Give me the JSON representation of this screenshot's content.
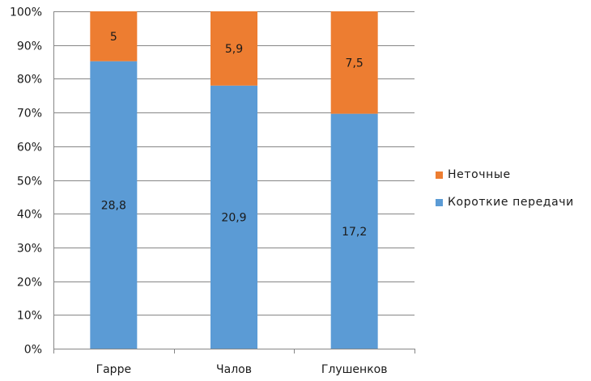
{
  "chart_data": {
    "type": "bar",
    "stacked": "percent",
    "categories": [
      "Гарре",
      "Чалов",
      "Глушенков"
    ],
    "series": [
      {
        "name": "Короткие передачи",
        "values": [
          28.8,
          20.9,
          17.2
        ],
        "labels": [
          "28,8",
          "20,9",
          "17,2"
        ],
        "color": "#5b9bd5"
      },
      {
        "name": "Неточные",
        "values": [
          5,
          5.9,
          7.5
        ],
        "labels": [
          "5",
          "5,9",
          "7,5"
        ],
        "color": "#ed7d31"
      }
    ],
    "y_ticks": [
      "0%",
      "10%",
      "20%",
      "30%",
      "40%",
      "50%",
      "60%",
      "70%",
      "80%",
      "90%",
      "100%"
    ],
    "ylim": [
      0,
      100
    ],
    "grid": true,
    "legend_position": "right",
    "title": "",
    "xlabel": "",
    "ylabel": ""
  }
}
